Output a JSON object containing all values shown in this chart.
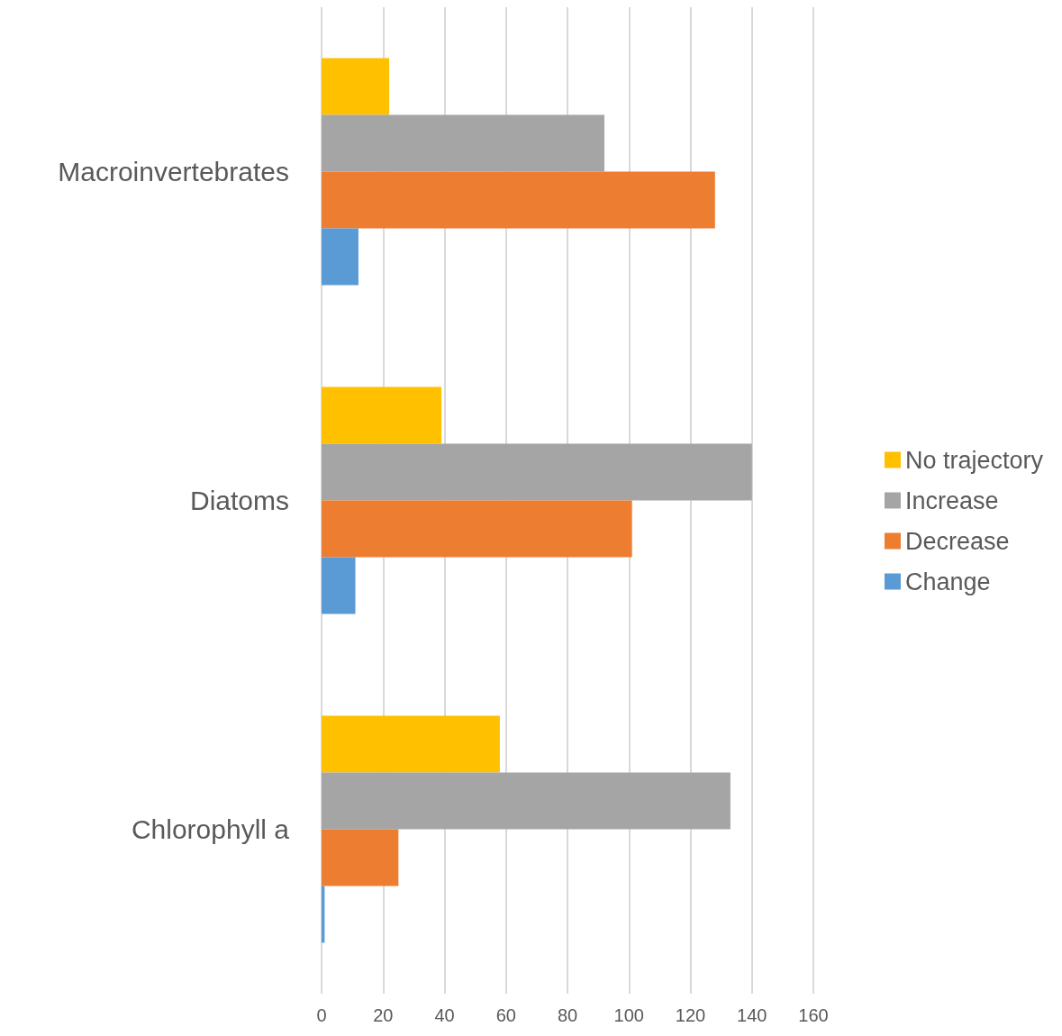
{
  "chart_data": {
    "type": "bar",
    "orientation": "horizontal",
    "categories": [
      "Macroinvertebrates",
      "Diatoms",
      "Chlorophyll a"
    ],
    "series": [
      {
        "name": "No trajectory",
        "color": "#ffc000",
        "values": [
          22,
          39,
          58
        ]
      },
      {
        "name": "Increase",
        "color": "#a5a5a5",
        "values": [
          92,
          140,
          133
        ]
      },
      {
        "name": "Decrease",
        "color": "#ed7d31",
        "values": [
          128,
          101,
          25
        ]
      },
      {
        "name": "Change",
        "color": "#5b9bd5",
        "values": [
          12,
          11,
          1
        ]
      }
    ],
    "xlim": [
      0,
      160
    ],
    "xticks": [
      0,
      20,
      40,
      60,
      80,
      100,
      120,
      140,
      160
    ],
    "grid": "x",
    "legend": "right"
  }
}
